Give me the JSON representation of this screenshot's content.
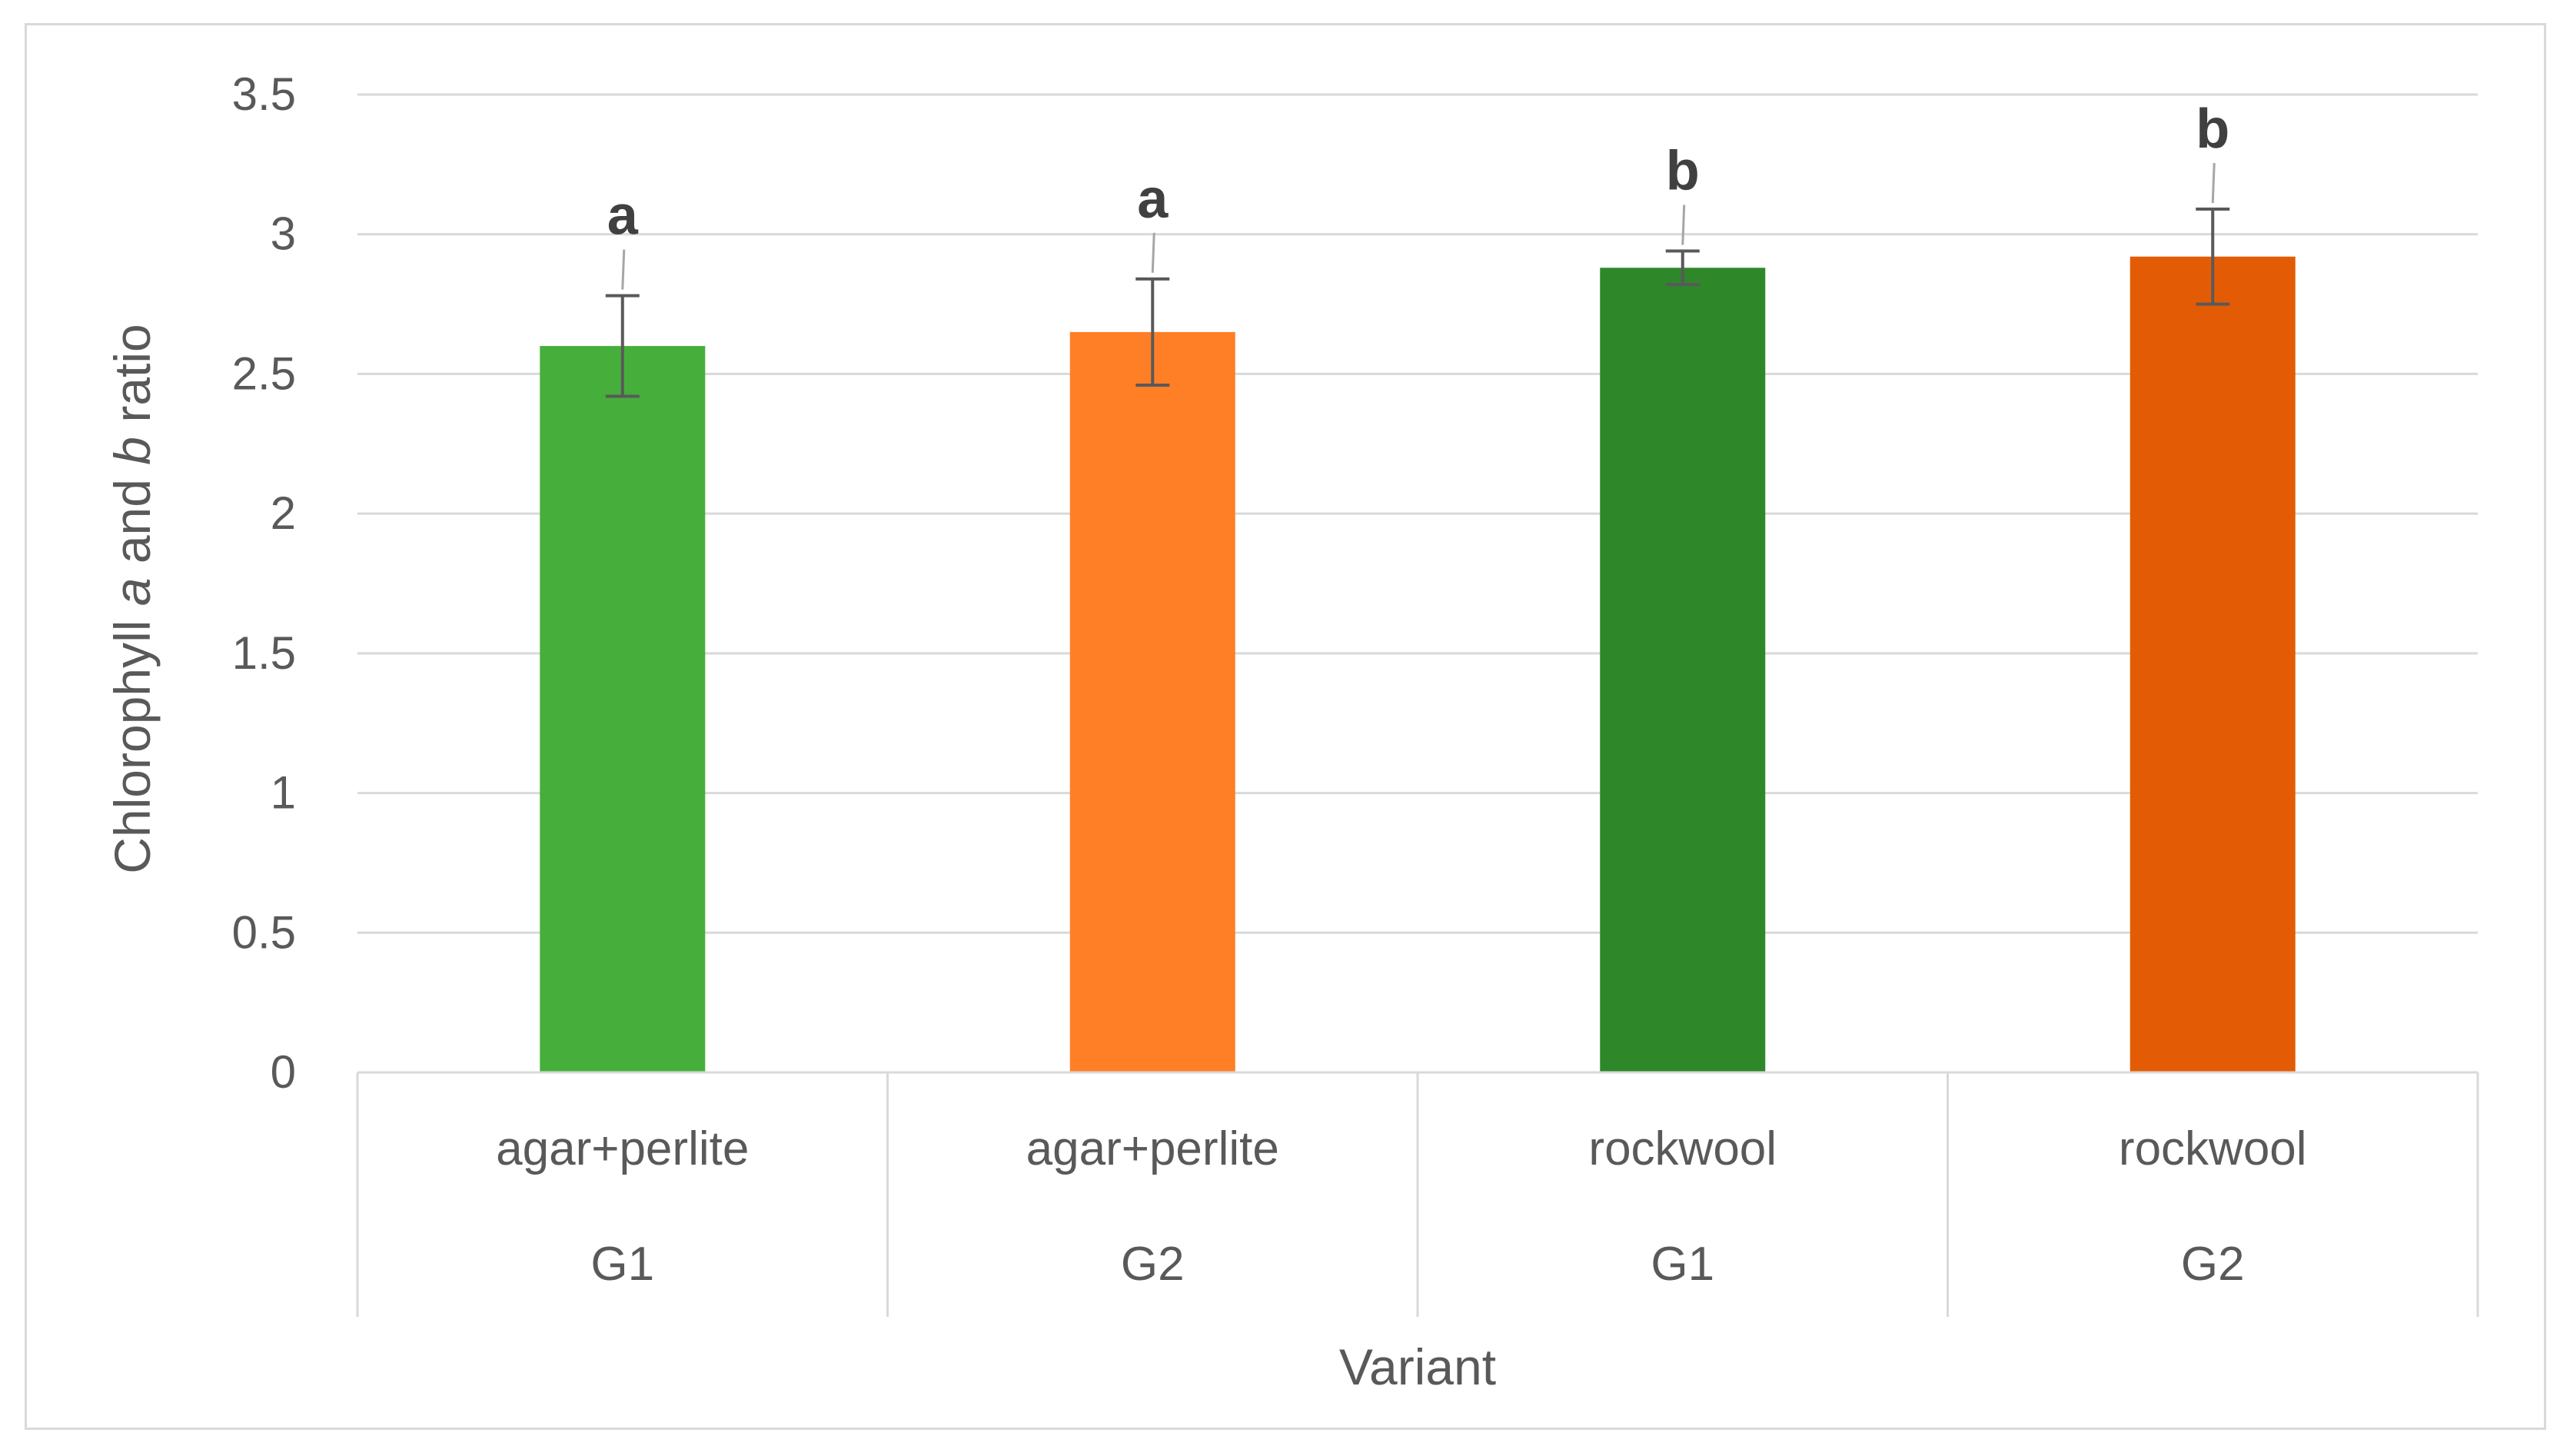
{
  "chart_data": {
    "type": "bar",
    "title": "",
    "xlabel": "Variant",
    "ylabel_parts": [
      "Chlorophyll ",
      "a",
      " and ",
      "b",
      " ratio"
    ],
    "ylim": [
      0,
      3.5
    ],
    "yticks": [
      "0",
      "0.5",
      "1",
      "1.5",
      "2",
      "2.5",
      "3",
      "3.5"
    ],
    "grid": true,
    "legend": "none",
    "categories": [
      {
        "substrate": "agar+perlite",
        "group": "G1"
      },
      {
        "substrate": "agar+perlite",
        "group": "G2"
      },
      {
        "substrate": "rockwool",
        "group": "G1"
      },
      {
        "substrate": "rockwool",
        "group": "G2"
      }
    ],
    "values": [
      2.6,
      2.65,
      2.88,
      2.92
    ],
    "errors": [
      0.18,
      0.19,
      0.06,
      0.17
    ],
    "significance": [
      "a",
      "a",
      "b",
      "b"
    ],
    "colors": [
      "#46AF3C",
      "#FF7F27",
      "#2E882A",
      "#E35C05"
    ]
  }
}
